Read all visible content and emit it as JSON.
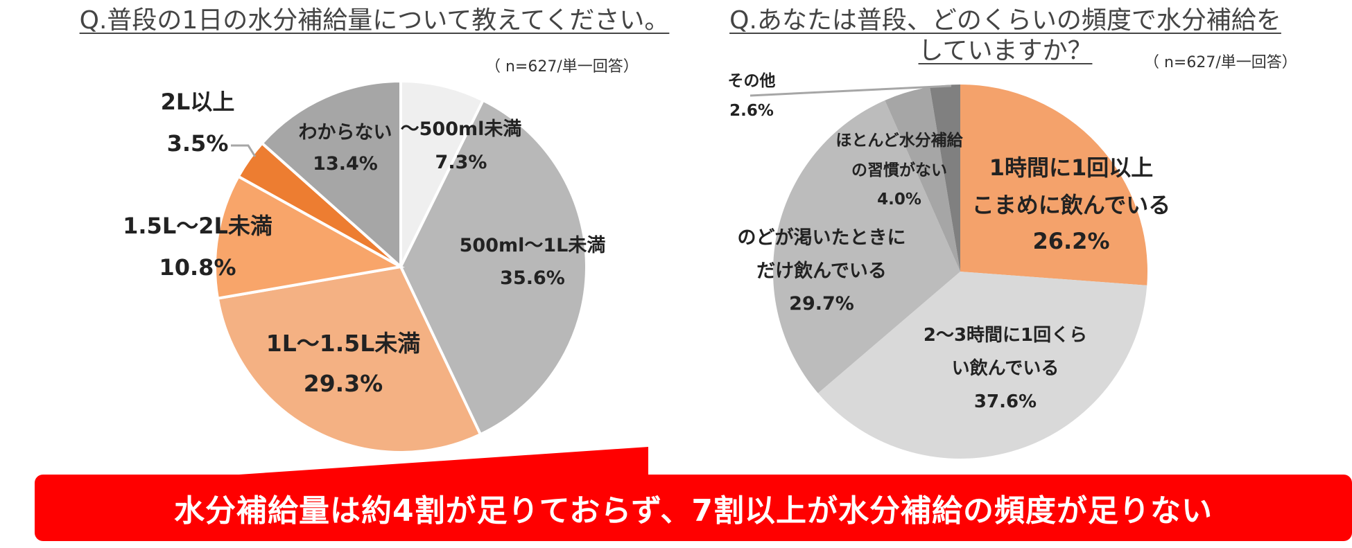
{
  "chart_data": [
    {
      "type": "pie",
      "title": "Q.普段の1日の水分補給量について教えてください。",
      "note": "（ n=627/単一回答）",
      "slices": [
        {
          "label": "〜500ml未満",
          "value": 7.3,
          "display": "7.3%",
          "color": "#efefef"
        },
        {
          "label": "500ml〜1L未満",
          "value": 35.6,
          "display": "35.6%",
          "color": "#b8b8b8"
        },
        {
          "label": "1L〜1.5L未満",
          "value": 29.3,
          "display": "29.3%",
          "color": "#f4b183"
        },
        {
          "label": "1.5L〜2L未満",
          "value": 10.8,
          "display": "10.8%",
          "color": "#f8a56a"
        },
        {
          "label": "2L以上",
          "value": 3.5,
          "display": "3.5%",
          "color": "#ed7d31"
        },
        {
          "label": "わからない",
          "value": 13.4,
          "display": "13.4%",
          "color": "#a6a6a6"
        }
      ]
    },
    {
      "type": "pie",
      "title": "Q.あなたは普段、どのくらいの頻度で水分補給をしていますか？",
      "title_line1": "Q.あなたは普段、どのくらいの頻度で水分補給を",
      "title_line2": "していますか？",
      "note": "（ n=627/単一回答）",
      "slices": [
        {
          "label": "1時間に1回以上こまめに飲んでいる",
          "label_line1": "1時間に1回以上",
          "label_line2": "こまめに飲んでいる",
          "value": 26.2,
          "display": "26.2%",
          "color": "#f4a26b"
        },
        {
          "label": "2〜3時間に1回くらい飲んでいる",
          "label_line1": "2〜3時間に1回くら",
          "label_line2": "い飲んでいる",
          "value": 37.6,
          "display": "37.6%",
          "color": "#d9d9d9"
        },
        {
          "label": "のどが渇いたときにだけ飲んでいる",
          "label_line1": "のどが渇いたときに",
          "label_line2": "だけ飲んでいる",
          "value": 29.7,
          "display": "29.7%",
          "color": "#bcbcbc"
        },
        {
          "label": "ほとんど水分補給の習慣がない",
          "label_line1": "ほとんど水分補給",
          "label_line2": "の習慣がない",
          "value": 4.0,
          "display": "4.0%",
          "color": "#a6a6a6"
        },
        {
          "label": "その他",
          "value": 2.6,
          "display": "2.6%",
          "color": "#808080"
        }
      ]
    }
  ],
  "banner": "水分補給量は約4割が足りておらず、7割以上が水分補給の頻度が足りない"
}
